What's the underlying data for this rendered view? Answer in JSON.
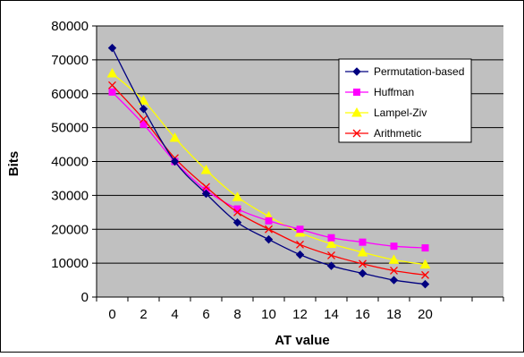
{
  "chart_data": {
    "type": "line",
    "title": "",
    "xlabel": "AT value",
    "ylabel": "Bits",
    "categories": [
      "0",
      "2",
      "4",
      "6",
      "8",
      "10",
      "12",
      "14",
      "16",
      "18",
      "20"
    ],
    "ylim": [
      0,
      80000
    ],
    "yticks": [
      "0",
      "10000",
      "20000",
      "30000",
      "40000",
      "50000",
      "60000",
      "70000",
      "80000"
    ],
    "grid": true,
    "legend_position": "right",
    "plot_background": "#c0c0c0",
    "series": [
      {
        "name": "Permutation-based",
        "color": "#000080",
        "marker": "diamond",
        "values": [
          73500,
          55500,
          40000,
          30500,
          22000,
          17000,
          12500,
          9200,
          7000,
          5000,
          3800
        ]
      },
      {
        "name": "Huffman",
        "color": "#ff00ff",
        "marker": "square",
        "values": [
          60500,
          51000,
          40000,
          31500,
          26000,
          22500,
          20000,
          17500,
          16200,
          15000,
          14500
        ]
      },
      {
        "name": "Lampel-Ziv",
        "color": "#ffff00",
        "marker": "triangle",
        "values": [
          66000,
          58000,
          47000,
          37500,
          29500,
          23800,
          19000,
          15700,
          13200,
          11000,
          9600
        ]
      },
      {
        "name": "Arithmetic",
        "color": "#ff0000",
        "marker": "x",
        "values": [
          62500,
          52500,
          41000,
          32500,
          25000,
          20000,
          15500,
          12300,
          9800,
          7800,
          6500
        ]
      }
    ]
  }
}
